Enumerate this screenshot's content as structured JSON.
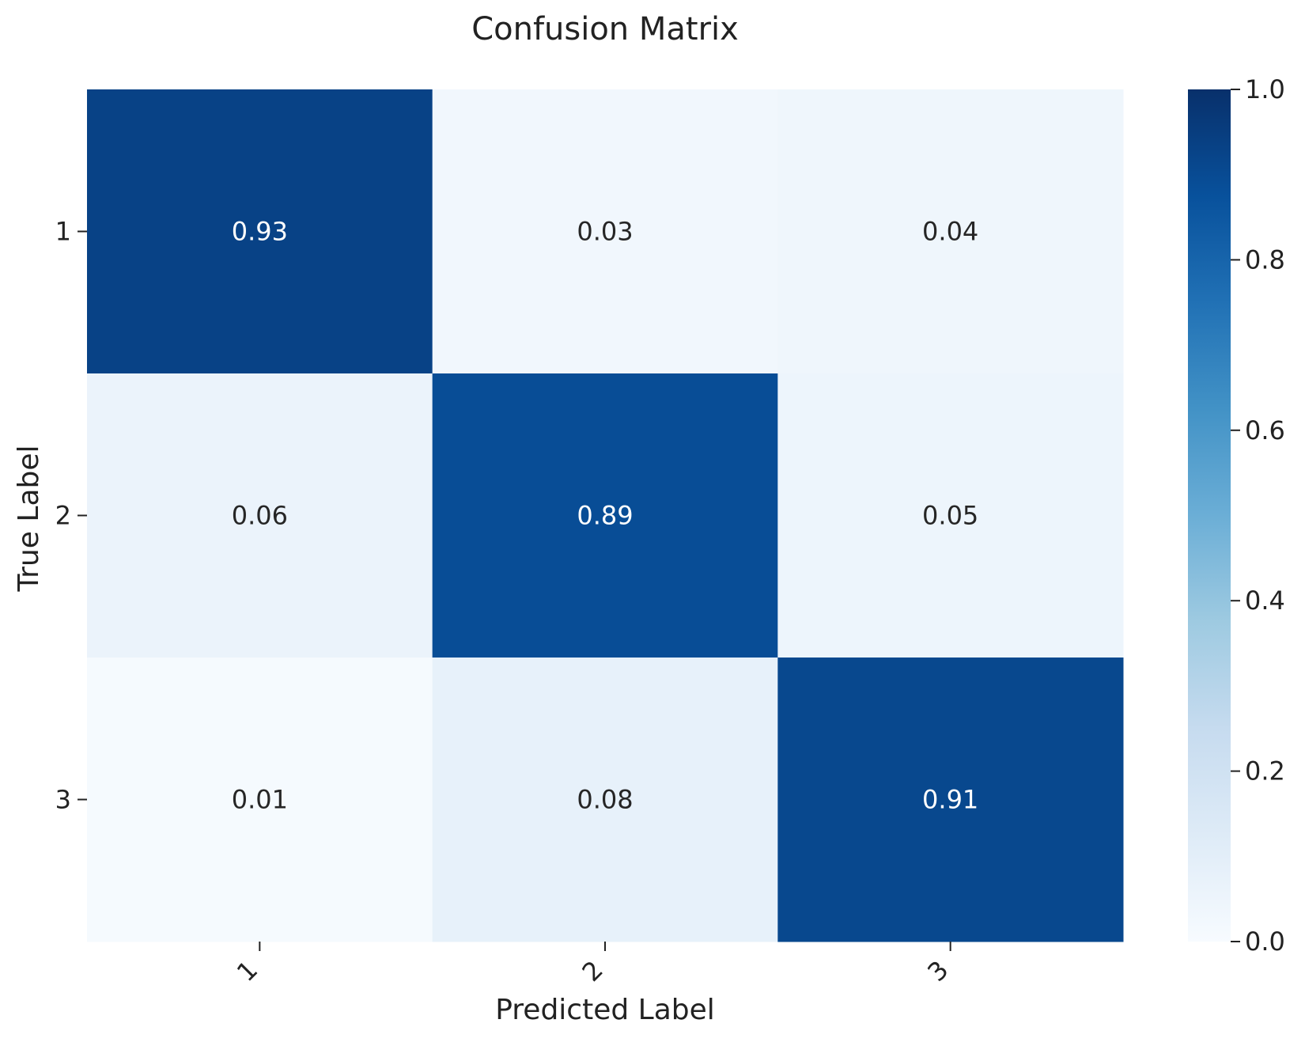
{
  "chart_data": {
    "type": "heatmap",
    "title": "Confusion Matrix",
    "xlabel": "Predicted Label",
    "ylabel": "True Label",
    "x_categories": [
      "1",
      "2",
      "3"
    ],
    "y_categories": [
      "1",
      "2",
      "3"
    ],
    "values": [
      [
        0.93,
        0.03,
        0.04
      ],
      [
        0.06,
        0.89,
        0.05
      ],
      [
        0.01,
        0.08,
        0.91
      ]
    ],
    "value_labels": [
      [
        "0.93",
        "0.03",
        "0.04"
      ],
      [
        "0.06",
        "0.89",
        "0.05"
      ],
      [
        "0.01",
        "0.08",
        "0.91"
      ]
    ],
    "colorbar": {
      "range": [
        0.0,
        1.0
      ],
      "ticks": [
        "0.0",
        "0.2",
        "0.4",
        "0.6",
        "0.8",
        "1.0"
      ],
      "colormap": "Blues",
      "colors": [
        "#f7fbff",
        "#deebf7",
        "#c6dbef",
        "#9ecae1",
        "#6baed6",
        "#4292c6",
        "#2171b5",
        "#08519c",
        "#08306b"
      ]
    },
    "xtick_rotation": "45 degrees",
    "grid": false
  }
}
